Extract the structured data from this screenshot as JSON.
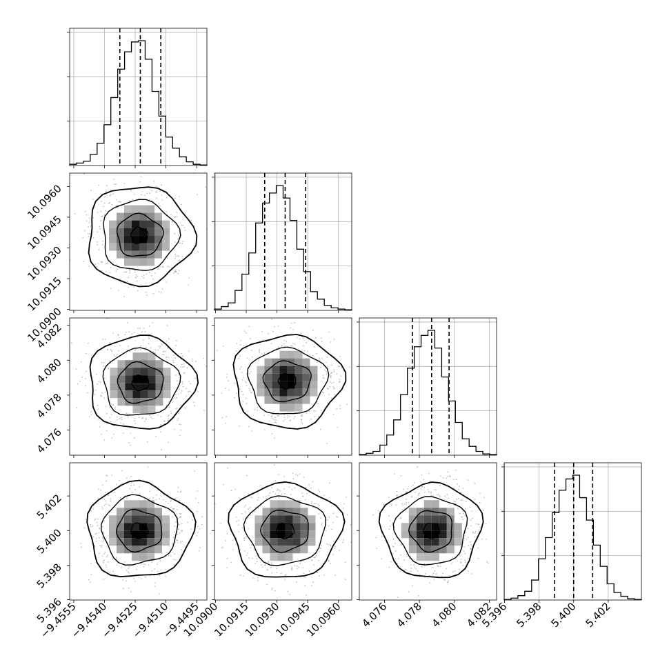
{
  "chart_data": {
    "type": "corner",
    "title": "",
    "n_params": 4,
    "quantile_lines": "dashed",
    "grid": true,
    "colors": {
      "line": "#000000",
      "grid": "#b0b0b0",
      "scatter": "#8a8a8a",
      "fill_dark": "#000000"
    },
    "params": [
      {
        "index": 0,
        "range": [
          -9.4557,
          -9.449
        ],
        "ticks": [
          "−9.4555",
          "−9.4540",
          "−9.4525",
          "−9.4510",
          "−9.4495"
        ],
        "tick_values": [
          -9.4555,
          -9.454,
          -9.4525,
          -9.451,
          -9.4495
        ],
        "quantiles": [
          -9.45325,
          -9.45225,
          -9.45125
        ],
        "histogram": [
          0.01,
          0.02,
          0.035,
          0.09,
          0.18,
          0.33,
          0.55,
          0.78,
          0.92,
          1.0,
          1.01,
          0.86,
          0.6,
          0.4,
          0.23,
          0.14,
          0.07,
          0.03,
          0.01,
          0.005
        ]
      },
      {
        "index": 1,
        "range": [
          10.08995,
          10.09665
        ],
        "ticks": [
          "10.0900",
          "10.0915",
          "10.0930",
          "10.0945",
          "10.0960"
        ],
        "tick_values": [
          10.09,
          10.0915,
          10.093,
          10.0945,
          10.096
        ],
        "quantiles": [
          10.0924,
          10.0934,
          10.0944
        ],
        "histogram": [
          0.01,
          0.03,
          0.06,
          0.16,
          0.29,
          0.46,
          0.7,
          0.86,
          0.94,
          1.0,
          0.9,
          0.72,
          0.49,
          0.31,
          0.15,
          0.09,
          0.04,
          0.02,
          0.01,
          0.005
        ]
      },
      {
        "index": 2,
        "range": [
          4.07456,
          4.08242
        ],
        "ticks": [
          "4.076",
          "4.078",
          "4.080",
          "4.082"
        ],
        "tick_values": [
          4.076,
          4.078,
          4.08,
          4.082
        ],
        "quantiles": [
          4.0776,
          4.0787,
          4.0797
        ],
        "histogram": [
          0.005,
          0.015,
          0.03,
          0.08,
          0.16,
          0.28,
          0.48,
          0.69,
          0.86,
          0.95,
          0.99,
          0.85,
          0.62,
          0.43,
          0.26,
          0.13,
          0.07,
          0.03,
          0.01,
          0.005
        ]
      },
      {
        "index": 3,
        "range": [
          5.39598,
          5.40392
        ],
        "ticks": [
          "5.396",
          "5.398",
          "5.400",
          "5.402"
        ],
        "tick_values": [
          5.396,
          5.398,
          5.4,
          5.402
        ],
        "quantiles": [
          5.3989,
          5.4,
          5.4011
        ],
        "histogram": [
          0.005,
          0.015,
          0.035,
          0.07,
          0.16,
          0.33,
          0.5,
          0.7,
          0.88,
          0.97,
          1.0,
          0.82,
          0.64,
          0.44,
          0.27,
          0.13,
          0.06,
          0.03,
          0.01,
          0.005
        ]
      }
    ],
    "joint": [
      {
        "row": 1,
        "col": 0,
        "center": [
          -9.4523,
          10.0936
        ],
        "spread": [
          0.00095,
          0.00095
        ]
      },
      {
        "row": 2,
        "col": 0,
        "center": [
          -9.45225,
          4.0787
        ],
        "spread": [
          0.00095,
          0.00105
        ]
      },
      {
        "row": 2,
        "col": 1,
        "center": [
          10.0935,
          4.0788
        ],
        "spread": [
          0.00098,
          0.00105
        ]
      },
      {
        "row": 3,
        "col": 0,
        "center": [
          -9.4523,
          5.4
        ],
        "spread": [
          0.00095,
          0.00108
        ]
      },
      {
        "row": 3,
        "col": 1,
        "center": [
          10.0934,
          5.4
        ],
        "spread": [
          0.001,
          0.00108
        ]
      },
      {
        "row": 3,
        "col": 2,
        "center": [
          4.0787,
          5.4
        ],
        "spread": [
          0.00105,
          0.00108
        ]
      }
    ]
  }
}
